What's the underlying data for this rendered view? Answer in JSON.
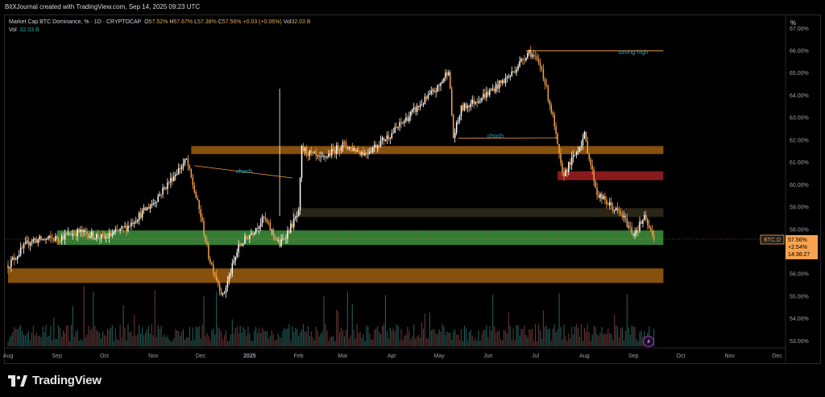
{
  "header": {
    "attribution": "BitXJournal created with TradingView.com, Sep 14, 2025 09:23 UTC"
  },
  "legend": {
    "symbol": "Market Cap BTC Dominance, % · 1D · CRYPTOCAP",
    "o_label": "O",
    "o": "57.52%",
    "h_label": "H",
    "h": "57.67%",
    "l_label": "L",
    "l": "57.38%",
    "c_label": "C",
    "c": "57.56%",
    "change": "+0.03 (+0.06%)",
    "vol_label": "Vol",
    "vol": "32.03 B",
    "vol_row_label": "Vol",
    "vol_row_value": "32.03 B"
  },
  "axis": {
    "unit": "%"
  },
  "price_tag": {
    "symbol": "BTC.D",
    "price": "57.56%",
    "change": "+2.54%",
    "countdown": "14:36:27"
  },
  "annotations": {
    "strong_high": "strong high",
    "choch_1": "choch",
    "choch_2": "choch"
  },
  "colors": {
    "up": "#ffffff",
    "down": "#f5a04a",
    "zone_green": "#3c8a3a",
    "zone_orange": "#a8650f",
    "zone_red": "#a01e22",
    "zone_dark": "#2f2a1a",
    "annotation_text": "#2ea7c0",
    "vol_up": "#2a6b66",
    "vol_down": "#7a3b3b"
  },
  "footer": {
    "brand": "TradingView",
    "logo_icon": "tradingview-logo-icon"
  },
  "chart_data": {
    "type": "candlestick",
    "title": "Market Cap BTC Dominance, % · 1D · CRYPTOCAP",
    "ylabel": "%",
    "ylim": [
      52.6,
      67.5
    ],
    "y_ticks": [
      "53.00%",
      "54.00%",
      "55.00%",
      "56.00%",
      "57.00%",
      "58.00%",
      "59.00%",
      "60.00%",
      "61.00%",
      "62.00%",
      "63.00%",
      "64.00%",
      "65.00%",
      "66.00%",
      "67.00%"
    ],
    "x_ticks": [
      "Aug",
      "Sep",
      "Oct",
      "Nov",
      "Dec",
      "2025",
      "Feb",
      "Mar",
      "Apr",
      "May",
      "Jun",
      "Jul",
      "Aug",
      "Sep",
      "Oct",
      "Nov",
      "Dec"
    ],
    "grid": false,
    "series": [
      {
        "name": "BTC.D close (approx.)",
        "x": [
          "2024-08-01",
          "2024-08-15",
          "2024-09-01",
          "2024-09-15",
          "2024-10-01",
          "2024-10-15",
          "2024-11-01",
          "2024-11-15",
          "2024-11-22",
          "2024-12-01",
          "2024-12-06",
          "2024-12-15",
          "2024-12-25",
          "2025-01-10",
          "2025-01-20",
          "2025-02-01",
          "2025-02-03",
          "2025-02-15",
          "2025-03-01",
          "2025-03-15",
          "2025-04-01",
          "2025-04-15",
          "2025-05-01",
          "2025-05-07",
          "2025-05-10",
          "2025-05-15",
          "2025-06-01",
          "2025-06-15",
          "2025-06-27",
          "2025-07-05",
          "2025-07-12",
          "2025-07-18",
          "2025-07-25",
          "2025-08-01",
          "2025-08-09",
          "2025-08-15",
          "2025-08-25",
          "2025-09-01",
          "2025-09-08",
          "2025-09-14"
        ],
        "values": [
          56.4,
          57.5,
          57.6,
          57.9,
          57.6,
          58.1,
          59.2,
          60.5,
          61.1,
          58.6,
          56.8,
          55.0,
          57.2,
          58.5,
          57.3,
          58.7,
          61.6,
          61.1,
          61.8,
          61.4,
          62.3,
          63.3,
          64.4,
          65.2,
          62.1,
          63.4,
          64.1,
          64.9,
          66.0,
          65.2,
          63.0,
          60.4,
          61.2,
          62.2,
          59.6,
          59.2,
          58.6,
          57.8,
          58.5,
          57.56
        ]
      }
    ],
    "zones": [
      {
        "color": "orange",
        "y": [
          61.37,
          61.73
        ],
        "x": [
          "2024-11-25",
          "2025-09-20"
        ]
      },
      {
        "color": "red",
        "y": [
          60.2,
          60.6
        ],
        "x": [
          "2025-07-15",
          "2025-09-20"
        ]
      },
      {
        "color": "dark",
        "y": [
          58.55,
          58.95
        ],
        "x": [
          "2025-01-28",
          "2025-09-20"
        ]
      },
      {
        "color": "green",
        "y": [
          57.3,
          57.95
        ],
        "x": [
          "2024-09-01",
          "2025-09-20"
        ]
      },
      {
        "color": "orange",
        "y": [
          55.6,
          56.25
        ],
        "x": [
          "2024-08-01",
          "2025-09-20"
        ]
      }
    ],
    "lines": [
      {
        "label": "strong high",
        "y": 66.0
      },
      {
        "label": "choch",
        "y": [
          60.85,
          60.3
        ]
      },
      {
        "label": "choch",
        "y": [
          62.08,
          62.1
        ]
      }
    ],
    "last_price": 57.56
  }
}
